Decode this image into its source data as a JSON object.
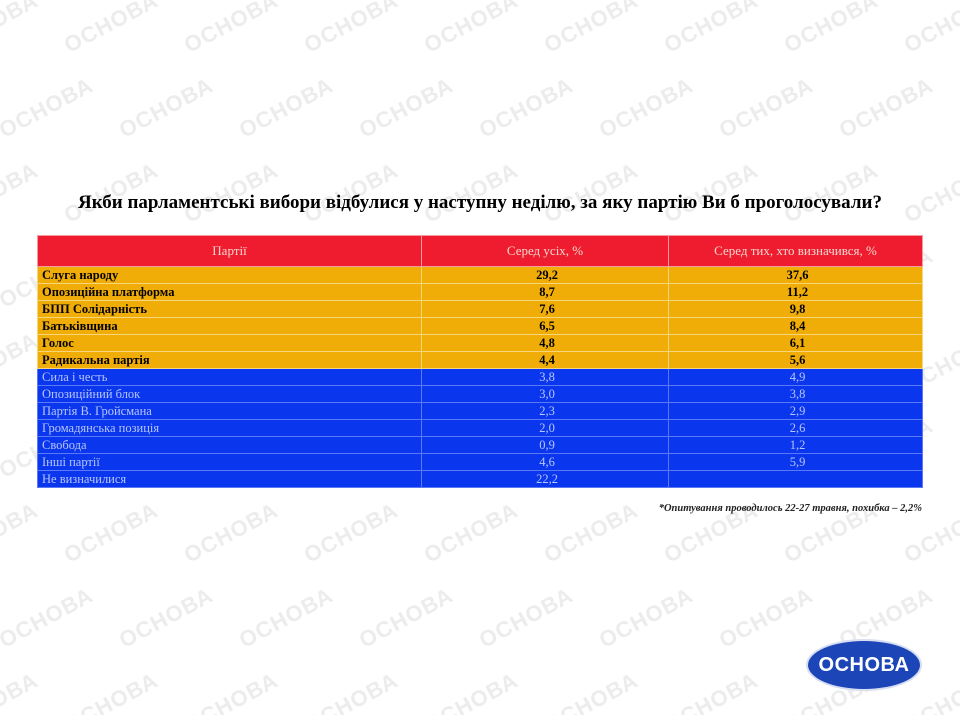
{
  "watermark": "ОСНОВА",
  "chart_data": {
    "type": "table",
    "title": "Якби парламентські вибори відбулися у наступну неділю, за яку партію Ви б проголосували?",
    "columns": [
      "Партії",
      "Серед усіх, %",
      "Серед тих, хто визначився, %"
    ],
    "rows": [
      {
        "party": "Слуга народу",
        "all": "29,2",
        "decided": "37,6",
        "group": "top"
      },
      {
        "party": "Опозиційна платформа",
        "all": "8,7",
        "decided": "11,2",
        "group": "top"
      },
      {
        "party": "БПП Солідарність",
        "all": "7,6",
        "decided": "9,8",
        "group": "top"
      },
      {
        "party": "Батьківщина",
        "all": "6,5",
        "decided": "8,4",
        "group": "top"
      },
      {
        "party": "Голос",
        "all": "4,8",
        "decided": "6,1",
        "group": "top"
      },
      {
        "party": "Радикальна партія",
        "all": "4,4",
        "decided": "5,6",
        "group": "top"
      },
      {
        "party": "Сила і честь",
        "all": "3,8",
        "decided": "4,9",
        "group": "other"
      },
      {
        "party": "Опозиційний блок",
        "all": "3,0",
        "decided": "3,8",
        "group": "other"
      },
      {
        "party": "Партія В. Гройсмана",
        "all": "2,3",
        "decided": "2,9",
        "group": "other"
      },
      {
        "party": "Громадянська позиція",
        "all": "2,0",
        "decided": "2,6",
        "group": "other"
      },
      {
        "party": "Свобода",
        "all": "0,9",
        "decided": "1,2",
        "group": "other"
      },
      {
        "party": "Інші партії",
        "all": "4,6",
        "decided": "5,9",
        "group": "other"
      },
      {
        "party": "Не визначилися",
        "all": "22,2",
        "decided": "",
        "group": "other"
      }
    ],
    "colors": {
      "header": "#ee1c2e",
      "top": "#f1ad07",
      "other": "#0a36ee"
    }
  },
  "footnote": "*Опитування проводилось 22-27 травня, похибка – 2,2%",
  "logo_text": "ОСНОВА"
}
